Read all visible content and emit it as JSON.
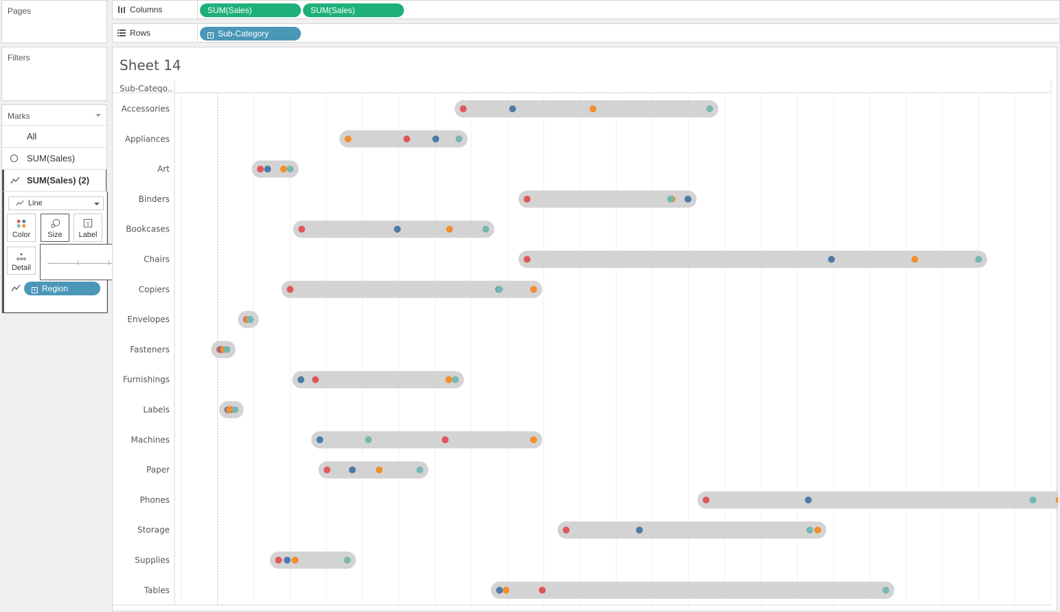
{
  "cards": {
    "pages": "Pages",
    "filters": "Filters",
    "marks": "Marks"
  },
  "marks": {
    "all": "All",
    "layer1": "SUM(Sales)",
    "layer2": "SUM(Sales) (2)",
    "mark_type": "Line",
    "buttons": {
      "color": "Color",
      "size": "Size",
      "label": "Label",
      "detail": "Detail"
    },
    "detail_pill": "Region",
    "size_slider_level": 0.97
  },
  "shelves": {
    "columns_label": "Columns",
    "rows_label": "Rows",
    "columns_pills": [
      "SUM(Sales)",
      "SUM(Sales)"
    ],
    "rows_pill": "Sub-Category"
  },
  "sheet": {
    "title": "Sheet 14",
    "row_header": "Sub-Catego.."
  },
  "colors": {
    "central": "#e15759",
    "east": "#4e79a7",
    "south": "#f28e2b",
    "west": "#76b7b2",
    "bar": "#d3d3d3",
    "pill_green": "#1fb07a",
    "pill_blue": "#4a97b8"
  },
  "chart_data": {
    "type": "scatter",
    "xlim": [
      -5000,
      115000
    ],
    "categories": [
      "Accessories",
      "Appliances",
      "Art",
      "Binders",
      "Bookcases",
      "Chairs",
      "Copiers",
      "Envelopes",
      "Fasteners",
      "Furnishings",
      "Labels",
      "Machines",
      "Paper",
      "Phones",
      "Storage",
      "Supplies",
      "Tables"
    ],
    "series": [
      {
        "color_key": "central",
        "values": [
          33900,
          26100,
          5900,
          42700,
          11600,
          42700,
          10000,
          4000,
          300,
          13500,
          1800,
          31400,
          15100,
          67400,
          48100,
          8400,
          44800
        ]
      },
      {
        "color_key": "east",
        "values": [
          40700,
          30100,
          6900,
          64900,
          24800,
          84700,
          38800,
          4500,
          600,
          11500,
          1400,
          14100,
          18600,
          81500,
          58200,
          9600,
          38900
        ]
      },
      {
        "color_key": "south",
        "values": [
          51800,
          18000,
          9100,
          62700,
          32000,
          96200,
          43600,
          4200,
          800,
          31900,
          1600,
          43600,
          22300,
          116100,
          82800,
          10700,
          39800
        ]
      },
      {
        "color_key": "west",
        "values": [
          67900,
          33300,
          10000,
          62500,
          37000,
          105000,
          38900,
          4500,
          1300,
          32800,
          2400,
          20800,
          27900,
          112500,
          81700,
          17900,
          92200
        ]
      }
    ]
  }
}
